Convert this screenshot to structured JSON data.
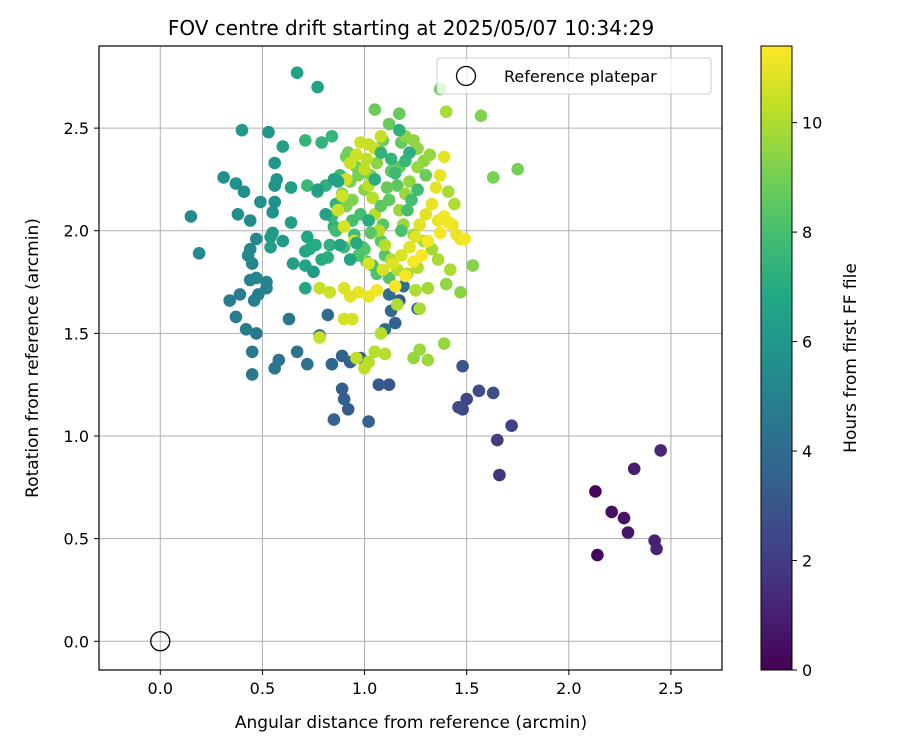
{
  "chart_data": {
    "type": "scatter",
    "title": "FOV centre drift starting at 2025/05/07 10:34:29",
    "xlabel": "Angular distance from reference (arcmin)",
    "ylabel": "Rotation from reference (arcmin)",
    "xlim": [
      -0.3,
      2.75
    ],
    "ylim": [
      -0.14,
      2.9
    ],
    "xticks": [
      0.0,
      0.5,
      1.0,
      1.5,
      2.0,
      2.5
    ],
    "yticks": [
      0.0,
      0.5,
      1.0,
      1.5,
      2.0,
      2.5
    ],
    "xtick_labels": [
      "0.0",
      "0.5",
      "1.0",
      "1.5",
      "2.0",
      "2.5"
    ],
    "ytick_labels": [
      "0.0",
      "0.5",
      "1.0",
      "1.5",
      "2.0",
      "2.5"
    ],
    "grid": true,
    "legend": {
      "placement": "upper-right",
      "entries": [
        "Reference platepar"
      ]
    },
    "reference": {
      "x": 0.0,
      "y": 0.0
    },
    "colorbar": {
      "label": "Hours from first FF file",
      "colormap": "viridis",
      "range": [
        0,
        11.4
      ],
      "ticks": [
        0,
        2,
        4,
        6,
        8,
        10
      ],
      "tick_labels": [
        "0",
        "2",
        "4",
        "6",
        "8",
        "10"
      ]
    },
    "points": [
      [
        2.13,
        0.73,
        0.2
      ],
      [
        2.14,
        0.42,
        0.3
      ],
      [
        2.21,
        0.63,
        0.5
      ],
      [
        2.27,
        0.6,
        0.6
      ],
      [
        2.29,
        0.53,
        0.7
      ],
      [
        2.32,
        0.84,
        0.9
      ],
      [
        2.42,
        0.49,
        1.0
      ],
      [
        2.43,
        0.45,
        1.1
      ],
      [
        2.45,
        0.93,
        1.2
      ],
      [
        1.66,
        0.81,
        1.7
      ],
      [
        1.65,
        0.98,
        2.0
      ],
      [
        1.72,
        1.05,
        2.2
      ],
      [
        1.48,
        1.13,
        2.4
      ],
      [
        1.5,
        1.18,
        2.4
      ],
      [
        1.46,
        1.14,
        2.6
      ],
      [
        1.56,
        1.22,
        2.6
      ],
      [
        1.63,
        1.21,
        2.8
      ],
      [
        1.48,
        1.34,
        3.0
      ],
      [
        1.12,
        1.25,
        3.0
      ],
      [
        1.07,
        1.25,
        3.2
      ],
      [
        0.92,
        1.13,
        3.3
      ],
      [
        0.89,
        1.23,
        3.4
      ],
      [
        0.9,
        1.18,
        3.4
      ],
      [
        1.02,
        1.07,
        3.5
      ],
      [
        0.85,
        1.08,
        3.5
      ],
      [
        0.93,
        1.36,
        3.6
      ],
      [
        0.89,
        1.39,
        3.6
      ],
      [
        0.98,
        1.38,
        3.8
      ],
      [
        0.84,
        1.35,
        3.8
      ],
      [
        0.82,
        1.59,
        3.9
      ],
      [
        1.15,
        1.55,
        3.5
      ],
      [
        1.13,
        1.61,
        3.9
      ],
      [
        1.17,
        1.66,
        3.2
      ],
      [
        1.12,
        1.69,
        4.0
      ],
      [
        1.19,
        1.73,
        4.1
      ],
      [
        1.26,
        1.62,
        3.6
      ],
      [
        1.1,
        1.52,
        4.2
      ],
      [
        0.78,
        1.49,
        4.2
      ],
      [
        0.72,
        1.35,
        4.3
      ],
      [
        0.67,
        1.41,
        4.3
      ],
      [
        0.58,
        1.37,
        4.4
      ],
      [
        0.56,
        1.33,
        4.4
      ],
      [
        0.63,
        1.57,
        4.5
      ],
      [
        0.45,
        1.3,
        4.5
      ],
      [
        0.45,
        1.41,
        4.6
      ],
      [
        0.47,
        1.5,
        4.6
      ],
      [
        0.42,
        1.52,
        4.7
      ],
      [
        0.37,
        1.58,
        4.7
      ],
      [
        0.34,
        1.66,
        4.8
      ],
      [
        0.39,
        1.69,
        4.8
      ],
      [
        0.46,
        1.66,
        4.9
      ],
      [
        0.48,
        1.69,
        4.9
      ],
      [
        0.52,
        1.72,
        5.0
      ],
      [
        0.44,
        1.76,
        5.0
      ],
      [
        0.47,
        1.77,
        5.1
      ],
      [
        0.52,
        1.75,
        5.1
      ],
      [
        0.45,
        1.84,
        5.2
      ],
      [
        0.43,
        1.88,
        5.2
      ],
      [
        0.44,
        1.91,
        5.3
      ],
      [
        0.47,
        1.96,
        5.3
      ],
      [
        0.19,
        1.89,
        5.4
      ],
      [
        0.15,
        2.07,
        5.4
      ],
      [
        0.38,
        2.08,
        5.5
      ],
      [
        0.44,
        2.05,
        5.5
      ],
      [
        0.49,
        2.14,
        5.6
      ],
      [
        0.41,
        2.19,
        5.6
      ],
      [
        0.37,
        2.23,
        5.7
      ],
      [
        0.31,
        2.26,
        5.7
      ],
      [
        0.55,
        2.09,
        5.8
      ],
      [
        0.56,
        2.14,
        5.8
      ],
      [
        0.56,
        2.22,
        5.9
      ],
      [
        0.57,
        2.25,
        5.9
      ],
      [
        0.56,
        2.33,
        6.0
      ],
      [
        0.53,
        2.48,
        6.0
      ],
      [
        0.4,
        2.49,
        6.1
      ],
      [
        0.54,
        1.97,
        6.1
      ],
      [
        0.6,
        1.95,
        6.2
      ],
      [
        0.55,
        1.99,
        6.2
      ],
      [
        0.54,
        1.92,
        6.3
      ],
      [
        0.65,
        1.84,
        6.3
      ],
      [
        0.64,
        2.04,
        6.4
      ],
      [
        0.64,
        2.21,
        6.4
      ],
      [
        0.6,
        2.41,
        6.5
      ],
      [
        0.67,
        2.77,
        6.5
      ],
      [
        0.77,
        2.7,
        6.6
      ],
      [
        0.71,
        1.9,
        6.6
      ],
      [
        0.71,
        1.83,
        6.7
      ],
      [
        0.72,
        1.97,
        6.8
      ],
      [
        0.71,
        1.72,
        6.8
      ],
      [
        0.73,
        1.91,
        6.9
      ],
      [
        0.76,
        1.93,
        7.0
      ],
      [
        0.79,
        1.86,
        7.0
      ],
      [
        0.82,
        1.87,
        7.1
      ],
      [
        0.83,
        1.93,
        7.2
      ],
      [
        0.85,
        2.02,
        7.2
      ],
      [
        0.86,
        2.13,
        7.3
      ],
      [
        0.81,
        2.22,
        7.3
      ],
      [
        0.79,
        2.43,
        7.4
      ],
      [
        0.84,
        2.46,
        7.5
      ],
      [
        0.71,
        2.44,
        7.5
      ],
      [
        0.72,
        2.22,
        7.6
      ],
      [
        0.77,
        2.19,
        7.6
      ],
      [
        0.84,
        2.07,
        7.7
      ],
      [
        0.88,
        2.27,
        7.8
      ],
      [
        0.86,
        2.0,
        7.8
      ],
      [
        0.9,
        1.92,
        7.9
      ],
      [
        0.95,
        1.98,
        7.9
      ],
      [
        0.94,
        2.05,
        8.0
      ],
      [
        0.98,
        2.08,
        8.0
      ],
      [
        0.99,
        1.92,
        8.1
      ],
      [
        1.01,
        1.85,
        8.1
      ],
      [
        1.04,
        1.83,
        8.2
      ],
      [
        1.06,
        1.79,
        8.2
      ],
      [
        1.12,
        1.77,
        8.3
      ],
      [
        1.1,
        1.88,
        8.3
      ],
      [
        1.08,
        1.95,
        8.4
      ],
      [
        1.09,
        2.03,
        8.4
      ],
      [
        1.12,
        2.15,
        8.5
      ],
      [
        1.16,
        2.22,
        8.5
      ],
      [
        1.17,
        2.31,
        8.6
      ],
      [
        1.18,
        2.43,
        8.6
      ],
      [
        1.12,
        2.52,
        8.7
      ],
      [
        1.17,
        2.57,
        8.7
      ],
      [
        1.05,
        2.59,
        8.8
      ],
      [
        1.09,
        2.44,
        8.8
      ],
      [
        0.92,
        2.38,
        8.9
      ],
      [
        0.91,
        2.36,
        8.9
      ],
      [
        0.96,
        2.31,
        9.0
      ],
      [
        0.97,
        2.27,
        9.0
      ],
      [
        0.93,
        2.24,
        9.1
      ],
      [
        0.89,
        2.18,
        9.1
      ],
      [
        0.91,
        2.12,
        9.2
      ],
      [
        0.94,
        2.15,
        9.2
      ],
      [
        1.0,
        2.2,
        9.3
      ],
      [
        1.03,
        2.27,
        9.3
      ],
      [
        1.06,
        2.33,
        9.4
      ],
      [
        1.2,
        2.46,
        9.4
      ],
      [
        1.24,
        2.44,
        9.5
      ],
      [
        1.26,
        2.4,
        9.5
      ],
      [
        1.29,
        2.34,
        9.5
      ],
      [
        1.32,
        2.37,
        9.6
      ],
      [
        1.26,
        2.31,
        9.6
      ],
      [
        1.22,
        2.24,
        9.6
      ],
      [
        1.2,
        2.18,
        9.7
      ],
      [
        1.17,
        2.1,
        9.7
      ],
      [
        1.19,
        2.03,
        9.7
      ],
      [
        1.24,
        1.98,
        9.8
      ],
      [
        1.29,
        1.95,
        9.8
      ],
      [
        1.33,
        1.91,
        9.8
      ],
      [
        1.36,
        1.86,
        9.9
      ],
      [
        1.42,
        1.81,
        9.9
      ],
      [
        1.41,
        2.19,
        9.9
      ],
      [
        1.4,
        2.58,
        9.9
      ],
      [
        1.44,
        2.13,
        10.0
      ],
      [
        1.26,
        1.82,
        10.0
      ],
      [
        1.21,
        1.79,
        10.0
      ],
      [
        1.16,
        1.81,
        10.1
      ],
      [
        1.13,
        1.86,
        10.1
      ],
      [
        1.1,
        1.93,
        10.1
      ],
      [
        1.07,
        2.0,
        10.2
      ],
      [
        1.05,
        2.08,
        10.2
      ],
      [
        1.04,
        2.16,
        10.2
      ],
      [
        1.02,
        2.22,
        10.3
      ],
      [
        1.0,
        2.3,
        10.3
      ],
      [
        1.01,
        2.35,
        10.3
      ],
      [
        1.05,
        2.4,
        10.4
      ],
      [
        1.08,
        2.46,
        10.4
      ],
      [
        1.02,
        2.42,
        10.4
      ],
      [
        0.98,
        2.43,
        10.5
      ],
      [
        0.96,
        2.37,
        10.5
      ],
      [
        0.93,
        2.33,
        10.5
      ],
      [
        0.91,
        2.25,
        10.6
      ],
      [
        0.89,
        2.17,
        10.6
      ],
      [
        0.87,
        2.1,
        10.6
      ],
      [
        0.9,
        2.02,
        10.7
      ],
      [
        0.95,
        1.95,
        10.7
      ],
      [
        0.98,
        1.89,
        10.7
      ],
      [
        1.02,
        1.84,
        10.8
      ],
      [
        1.09,
        1.81,
        10.8
      ],
      [
        1.14,
        1.84,
        10.8
      ],
      [
        1.18,
        1.88,
        10.8
      ],
      [
        1.22,
        1.92,
        10.9
      ],
      [
        1.25,
        1.97,
        10.9
      ],
      [
        1.27,
        2.03,
        10.9
      ],
      [
        1.3,
        2.08,
        10.9
      ],
      [
        1.33,
        2.13,
        11.0
      ],
      [
        1.35,
        2.21,
        11.0
      ],
      [
        1.37,
        2.27,
        11.0
      ],
      [
        1.39,
        2.36,
        11.0
      ],
      [
        1.36,
        2.05,
        11.1
      ],
      [
        1.43,
        2.03,
        11.1
      ],
      [
        1.45,
        1.98,
        11.1
      ],
      [
        1.47,
        1.96,
        11.1
      ],
      [
        1.49,
        1.96,
        11.2
      ],
      [
        1.41,
        2.04,
        11.2
      ],
      [
        1.39,
        2.07,
        11.2
      ],
      [
        1.37,
        1.99,
        11.2
      ],
      [
        1.31,
        1.95,
        11.3
      ],
      [
        1.28,
        1.88,
        11.3
      ],
      [
        1.24,
        1.85,
        11.3
      ],
      [
        1.2,
        1.78,
        11.3
      ],
      [
        1.15,
        1.73,
        11.3
      ],
      [
        1.06,
        1.71,
        11.2
      ],
      [
        1.02,
        1.68,
        11.1
      ],
      [
        0.97,
        1.7,
        11.0
      ],
      [
        0.93,
        1.68,
        10.9
      ],
      [
        0.9,
        1.72,
        10.8
      ],
      [
        0.94,
        1.57,
        10.7
      ],
      [
        0.9,
        1.57,
        10.6
      ],
      [
        0.83,
        1.7,
        10.5
      ],
      [
        0.78,
        1.72,
        10.4
      ],
      [
        0.78,
        1.48,
        10.4
      ],
      [
        0.96,
        1.38,
        10.3
      ],
      [
        1.0,
        1.33,
        10.3
      ],
      [
        1.02,
        1.36,
        10.2
      ],
      [
        1.05,
        1.41,
        10.2
      ],
      [
        1.1,
        1.4,
        10.1
      ],
      [
        1.08,
        1.5,
        10.1
      ],
      [
        1.16,
        1.64,
        10.0
      ],
      [
        1.25,
        1.71,
        10.0
      ],
      [
        1.27,
        1.62,
        9.9
      ],
      [
        1.31,
        1.72,
        9.8
      ],
      [
        1.27,
        1.42,
        9.7
      ],
      [
        1.31,
        1.37,
        9.7
      ],
      [
        1.24,
        1.38,
        9.6
      ],
      [
        1.39,
        1.45,
        9.6
      ],
      [
        1.4,
        1.74,
        9.5
      ],
      [
        1.47,
        1.7,
        9.4
      ],
      [
        1.53,
        1.83,
        9.3
      ],
      [
        1.57,
        2.56,
        9.2
      ],
      [
        1.63,
        2.26,
        9.1
      ],
      [
        1.75,
        2.3,
        9.0
      ],
      [
        1.37,
        2.69,
        8.9
      ],
      [
        1.3,
        2.27,
        8.8
      ],
      [
        1.11,
        2.21,
        8.7
      ],
      [
        1.13,
        2.29,
        8.6
      ],
      [
        1.08,
        2.12,
        8.5
      ],
      [
        1.03,
        1.99,
        8.4
      ],
      [
        1.0,
        1.91,
        8.3
      ],
      [
        0.97,
        1.88,
        8.2
      ],
      [
        1.18,
        2.0,
        8.1
      ],
      [
        1.21,
        2.1,
        8.0
      ],
      [
        1.23,
        2.15,
        7.9
      ],
      [
        1.26,
        2.2,
        7.8
      ],
      [
        1.15,
        2.28,
        7.7
      ],
      [
        1.2,
        2.34,
        7.6
      ],
      [
        1.13,
        2.35,
        7.5
      ],
      [
        1.08,
        2.38,
        7.4
      ],
      [
        1.17,
        2.49,
        7.3
      ],
      [
        1.22,
        2.38,
        7.2
      ],
      [
        1.05,
        2.25,
        7.1
      ],
      [
        1.02,
        2.05,
        7.0
      ],
      [
        0.96,
        1.94,
        6.9
      ],
      [
        0.93,
        1.86,
        6.8
      ],
      [
        0.88,
        1.93,
        6.7
      ],
      [
        0.87,
        2.24,
        6.6
      ],
      [
        0.81,
        2.08,
        6.5
      ],
      [
        0.85,
        2.25,
        6.4
      ],
      [
        0.77,
        2.2,
        6.3
      ],
      [
        0.75,
        1.8,
        6.2
      ]
    ]
  }
}
